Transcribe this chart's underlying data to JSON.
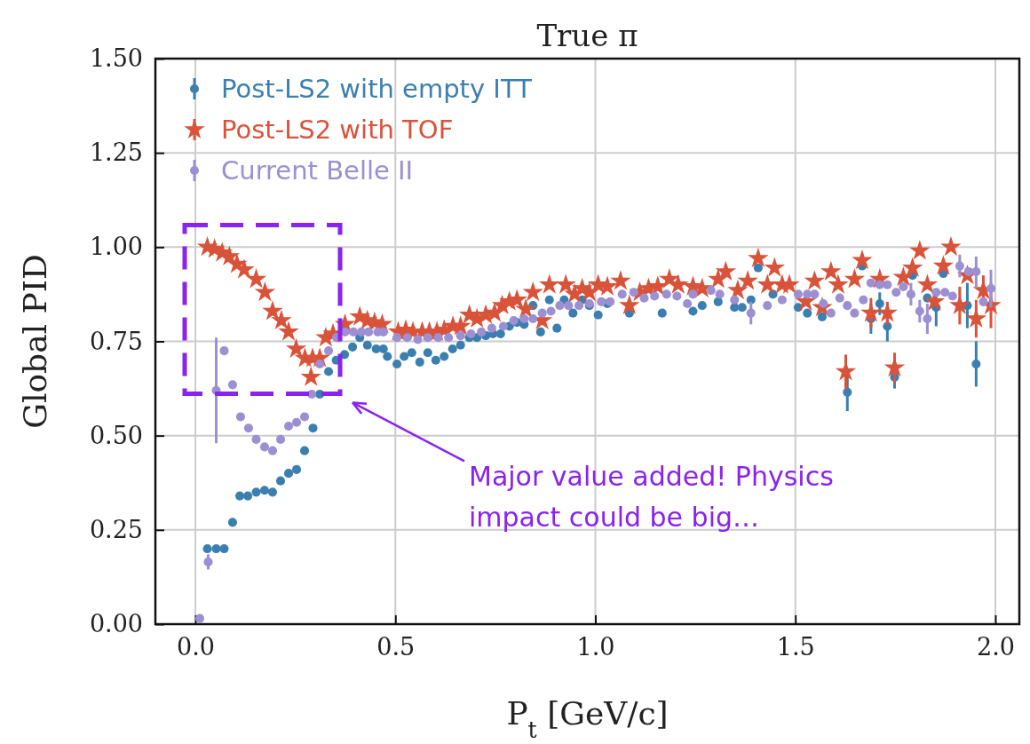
{
  "chart_data": {
    "type": "scatter",
    "title": "True π",
    "xlabel": "P$_{t}$ [GeV/c]",
    "ylabel": "Global PID",
    "xlim": [
      -0.1,
      2.06
    ],
    "ylim": [
      0,
      1.5
    ],
    "xticks": [
      {
        "value": 0,
        "label": "0.0"
      },
      {
        "value": 0.5,
        "label": "0.5"
      },
      {
        "value": 1,
        "label": "1.0"
      },
      {
        "value": 1.5,
        "label": "1.5"
      },
      {
        "value": 2,
        "label": "2.0"
      }
    ],
    "yticks": [
      {
        "value": 0,
        "label": "0.00"
      },
      {
        "value": 0.25,
        "label": "0.25"
      },
      {
        "value": 0.5,
        "label": "0.50"
      },
      {
        "value": 0.75,
        "label": "0.75"
      },
      {
        "value": 1,
        "label": "1.00"
      },
      {
        "value": 1.25,
        "label": "1.25"
      },
      {
        "value": 1.5,
        "label": "1.50"
      }
    ],
    "grid": true,
    "legend": "top left",
    "annotations": [
      "Major value added! Physics\nimpact could be big…"
    ],
    "series": [
      {
        "name": "Post-LS2 with empty ITT",
        "color": "#3b7fb0",
        "marker": "circle",
        "x": [
          0.03,
          0.052,
          0.072,
          0.093,
          0.111,
          0.131,
          0.152,
          0.173,
          0.193,
          0.213,
          0.233,
          0.253,
          0.273,
          0.294,
          0.311,
          0.333,
          0.352,
          0.373,
          0.393,
          0.411,
          0.43,
          0.452,
          0.47,
          0.48,
          0.504,
          0.522,
          0.541,
          0.561,
          0.581,
          0.601,
          0.622,
          0.643,
          0.663,
          0.685,
          0.704,
          0.726,
          0.744,
          0.763,
          0.785,
          0.804,
          0.822,
          0.844,
          0.863,
          0.885,
          0.904,
          0.922,
          0.944,
          0.967,
          0.985,
          1.007,
          1.03,
          1.085,
          1.167,
          1.244,
          1.267,
          1.307,
          1.348,
          1.367,
          1.389,
          1.407,
          1.444,
          1.507,
          1.53,
          1.567,
          1.63,
          1.667,
          1.689,
          1.711,
          1.73,
          1.748,
          1.793,
          1.83,
          1.852,
          1.87,
          1.93,
          1.952
        ],
        "values": [
          0.2,
          0.2,
          0.2,
          0.27,
          0.34,
          0.34,
          0.35,
          0.355,
          0.35,
          0.38,
          0.4,
          0.41,
          0.46,
          0.52,
          0.61,
          0.67,
          0.7,
          0.715,
          0.735,
          0.76,
          0.74,
          0.73,
          0.73,
          0.71,
          0.69,
          0.71,
          0.72,
          0.695,
          0.72,
          0.7,
          0.71,
          0.73,
          0.74,
          0.76,
          0.76,
          0.765,
          0.77,
          0.77,
          0.79,
          0.8,
          0.795,
          0.845,
          0.775,
          0.86,
          0.785,
          0.86,
          0.825,
          0.86,
          0.845,
          0.82,
          0.85,
          0.825,
          0.825,
          0.83,
          0.845,
          0.855,
          0.84,
          0.84,
          0.86,
          0.945,
          0.875,
          0.84,
          0.825,
          0.815,
          0.615,
          0.95,
          0.81,
          0.85,
          0.79,
          0.655,
          0.925,
          0.865,
          0.84,
          0.93,
          0.845,
          0.69
        ],
        "errors": [
          null,
          null,
          null,
          null,
          null,
          null,
          null,
          null,
          null,
          null,
          null,
          null,
          null,
          null,
          null,
          null,
          null,
          null,
          null,
          null,
          null,
          null,
          null,
          null,
          null,
          null,
          null,
          null,
          null,
          null,
          null,
          null,
          null,
          null,
          null,
          null,
          null,
          null,
          null,
          null,
          null,
          null,
          null,
          null,
          null,
          null,
          null,
          null,
          null,
          null,
          null,
          null,
          null,
          null,
          null,
          null,
          null,
          null,
          null,
          null,
          null,
          null,
          null,
          null,
          0.05,
          null,
          0.04,
          0.03,
          0.04,
          0.03,
          null,
          null,
          0.05,
          null,
          0.06,
          0.06
        ]
      },
      {
        "name": "Post-LS2 with TOF",
        "color": "#d9533a",
        "marker": "star",
        "x": [
          0.03,
          0.048,
          0.067,
          0.085,
          0.104,
          0.122,
          0.152,
          0.174,
          0.193,
          0.215,
          0.233,
          0.252,
          0.274,
          0.289,
          0.293,
          0.311,
          0.326,
          0.344,
          0.374,
          0.411,
          0.43,
          0.448,
          0.467,
          0.507,
          0.526,
          0.544,
          0.567,
          0.585,
          0.604,
          0.622,
          0.644,
          0.663,
          0.685,
          0.704,
          0.726,
          0.748,
          0.767,
          0.785,
          0.804,
          0.826,
          0.844,
          0.867,
          0.885,
          0.926,
          0.948,
          0.967,
          0.985,
          1.007,
          1.03,
          1.063,
          1.085,
          1.111,
          1.133,
          1.156,
          1.185,
          1.207,
          1.244,
          1.267,
          1.307,
          1.326,
          1.356,
          1.381,
          1.407,
          1.43,
          1.448,
          1.467,
          1.485,
          1.526,
          1.548,
          1.567,
          1.589,
          1.607,
          1.626,
          1.648,
          1.667,
          1.689,
          1.711,
          1.73,
          1.748,
          1.77,
          1.793,
          1.811,
          1.83,
          1.848,
          1.87,
          1.889,
          1.911,
          1.93,
          1.952,
          1.97,
          1.989
        ],
        "values": [
          1.0,
          0.995,
          0.985,
          0.975,
          0.955,
          0.94,
          0.915,
          0.88,
          0.83,
          0.805,
          0.775,
          0.73,
          0.705,
          0.655,
          0.705,
          0.705,
          0.76,
          0.77,
          0.795,
          0.815,
          0.805,
          0.8,
          0.795,
          0.775,
          0.78,
          0.775,
          0.775,
          0.775,
          0.775,
          0.78,
          0.79,
          0.79,
          0.82,
          0.81,
          0.82,
          0.825,
          0.845,
          0.855,
          0.86,
          0.835,
          0.88,
          0.805,
          0.9,
          0.9,
          0.875,
          0.89,
          0.88,
          0.9,
          0.895,
          0.91,
          0.845,
          0.88,
          0.89,
          0.895,
          0.915,
          0.9,
          0.895,
          0.89,
          0.915,
          0.935,
          0.885,
          0.91,
          0.97,
          0.9,
          0.945,
          0.9,
          0.9,
          0.855,
          0.91,
          0.84,
          0.935,
          0.9,
          0.67,
          0.915,
          0.965,
          0.825,
          0.915,
          0.825,
          0.68,
          0.92,
          0.945,
          0.99,
          0.9,
          0.855,
          0.95,
          1.0,
          0.845,
          0.925,
          0.81,
          0.885,
          0.845
        ],
        "errors": [
          null,
          null,
          null,
          null,
          null,
          null,
          null,
          null,
          null,
          null,
          null,
          null,
          null,
          null,
          null,
          null,
          null,
          null,
          null,
          null,
          null,
          null,
          null,
          null,
          null,
          null,
          null,
          null,
          null,
          null,
          null,
          null,
          null,
          null,
          null,
          null,
          null,
          null,
          null,
          null,
          null,
          null,
          null,
          null,
          null,
          null,
          null,
          null,
          null,
          null,
          null,
          null,
          null,
          null,
          null,
          null,
          null,
          null,
          null,
          null,
          null,
          null,
          null,
          null,
          null,
          null,
          null,
          null,
          null,
          null,
          null,
          null,
          0.045,
          null,
          null,
          0.04,
          null,
          0.03,
          0.04,
          null,
          null,
          null,
          null,
          null,
          null,
          null,
          0.05,
          null,
          0.05,
          0.04,
          0.06
        ]
      },
      {
        "name": "Current Belle II",
        "color": "#9c8fd2",
        "marker": "circle",
        "x": [
          0.011,
          0.032,
          0.052,
          0.072,
          0.093,
          0.113,
          0.133,
          0.152,
          0.173,
          0.193,
          0.213,
          0.233,
          0.253,
          0.273,
          0.291,
          0.311,
          0.333,
          0.353,
          0.374,
          0.395,
          0.415,
          0.433,
          0.456,
          0.47,
          0.504,
          0.53,
          0.556,
          0.581,
          0.607,
          0.633,
          0.663,
          0.689,
          0.715,
          0.741,
          0.77,
          0.796,
          0.822,
          0.844,
          0.867,
          0.889,
          0.911,
          0.933,
          0.959,
          0.985,
          1.015,
          1.037,
          1.067,
          1.096,
          1.122,
          1.148,
          1.178,
          1.204,
          1.23,
          1.244,
          1.289,
          1.311,
          1.348,
          1.389,
          1.43,
          1.467,
          1.507,
          1.53,
          1.548,
          1.57,
          1.589,
          1.611,
          1.63,
          1.648,
          1.67,
          1.689,
          1.711,
          1.73,
          1.752,
          1.77,
          1.789,
          1.811,
          1.83,
          1.852,
          1.874,
          1.893,
          1.911,
          1.933,
          1.952,
          1.97,
          1.989
        ],
        "values": [
          0.015,
          0.165,
          0.62,
          0.725,
          0.635,
          0.55,
          0.52,
          0.49,
          0.47,
          0.46,
          0.49,
          0.525,
          0.535,
          0.55,
          0.61,
          0.69,
          0.725,
          0.76,
          0.775,
          0.775,
          0.775,
          0.775,
          0.775,
          0.775,
          0.76,
          0.76,
          0.755,
          0.76,
          0.76,
          0.76,
          0.765,
          0.77,
          0.775,
          0.785,
          0.79,
          0.805,
          0.81,
          0.81,
          0.825,
          0.83,
          0.845,
          0.845,
          0.845,
          0.85,
          0.855,
          0.855,
          0.875,
          0.88,
          0.865,
          0.87,
          0.875,
          0.87,
          0.85,
          0.875,
          0.885,
          0.875,
          0.86,
          0.825,
          0.845,
          0.86,
          0.875,
          0.875,
          0.875,
          0.85,
          0.825,
          0.865,
          0.845,
          0.825,
          0.86,
          0.905,
          0.9,
          0.9,
          0.88,
          0.895,
          0.875,
          0.83,
          0.81,
          0.88,
          0.88,
          0.87,
          0.95,
          0.935,
          0.935,
          0.855,
          0.89
        ],
        "errors": [
          null,
          0.02,
          0.14,
          null,
          null,
          null,
          null,
          null,
          null,
          null,
          null,
          null,
          null,
          null,
          null,
          null,
          null,
          null,
          null,
          null,
          null,
          null,
          null,
          null,
          null,
          null,
          null,
          null,
          null,
          null,
          null,
          null,
          null,
          null,
          null,
          null,
          null,
          null,
          null,
          null,
          null,
          null,
          null,
          null,
          null,
          null,
          null,
          null,
          null,
          null,
          null,
          null,
          null,
          null,
          null,
          null,
          null,
          0.03,
          null,
          null,
          null,
          null,
          null,
          null,
          null,
          null,
          null,
          null,
          null,
          null,
          null,
          null,
          null,
          null,
          0.03,
          0.03,
          0.04,
          null,
          null,
          null,
          0.03,
          null,
          0.04,
          null,
          0.05
        ]
      }
    ]
  }
}
